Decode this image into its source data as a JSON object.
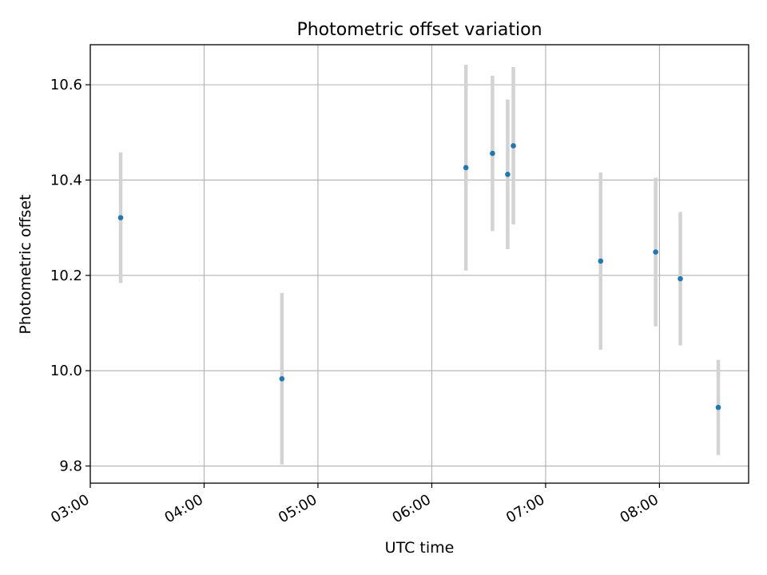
{
  "chart_data": {
    "type": "scatter",
    "title": "Photometric offset variation",
    "xlabel": "UTC time",
    "ylabel": "Photometric offset",
    "x_tick_labels": [
      "03:00",
      "04:00",
      "05:00",
      "06:00",
      "07:00",
      "08:00"
    ],
    "y_tick_labels": [
      "9.8",
      "10.0",
      "10.2",
      "10.4",
      "10.6"
    ],
    "xlim": [
      "03:00",
      "08:47"
    ],
    "ylim": [
      9.764,
      10.684
    ],
    "grid": true,
    "point_color": "#1f77b4",
    "errorbar_color": "#d3d3d3",
    "series": [
      {
        "points": [
          {
            "x": "03:16",
            "y": 10.321,
            "yerr": 0.137
          },
          {
            "x": "04:41",
            "y": 9.983,
            "yerr": 0.18
          },
          {
            "x": "06:18",
            "y": 10.426,
            "yerr": 0.216
          },
          {
            "x": "06:32",
            "y": 10.456,
            "yerr": 0.163
          },
          {
            "x": "06:40",
            "y": 10.412,
            "yerr": 0.157
          },
          {
            "x": "06:43",
            "y": 10.472,
            "yerr": 0.165
          },
          {
            "x": "07:29",
            "y": 10.23,
            "yerr": 0.186
          },
          {
            "x": "07:58",
            "y": 10.249,
            "yerr": 0.156
          },
          {
            "x": "08:11",
            "y": 10.193,
            "yerr": 0.14
          },
          {
            "x": "08:31",
            "y": 9.923,
            "yerr": 0.1
          }
        ]
      }
    ]
  }
}
